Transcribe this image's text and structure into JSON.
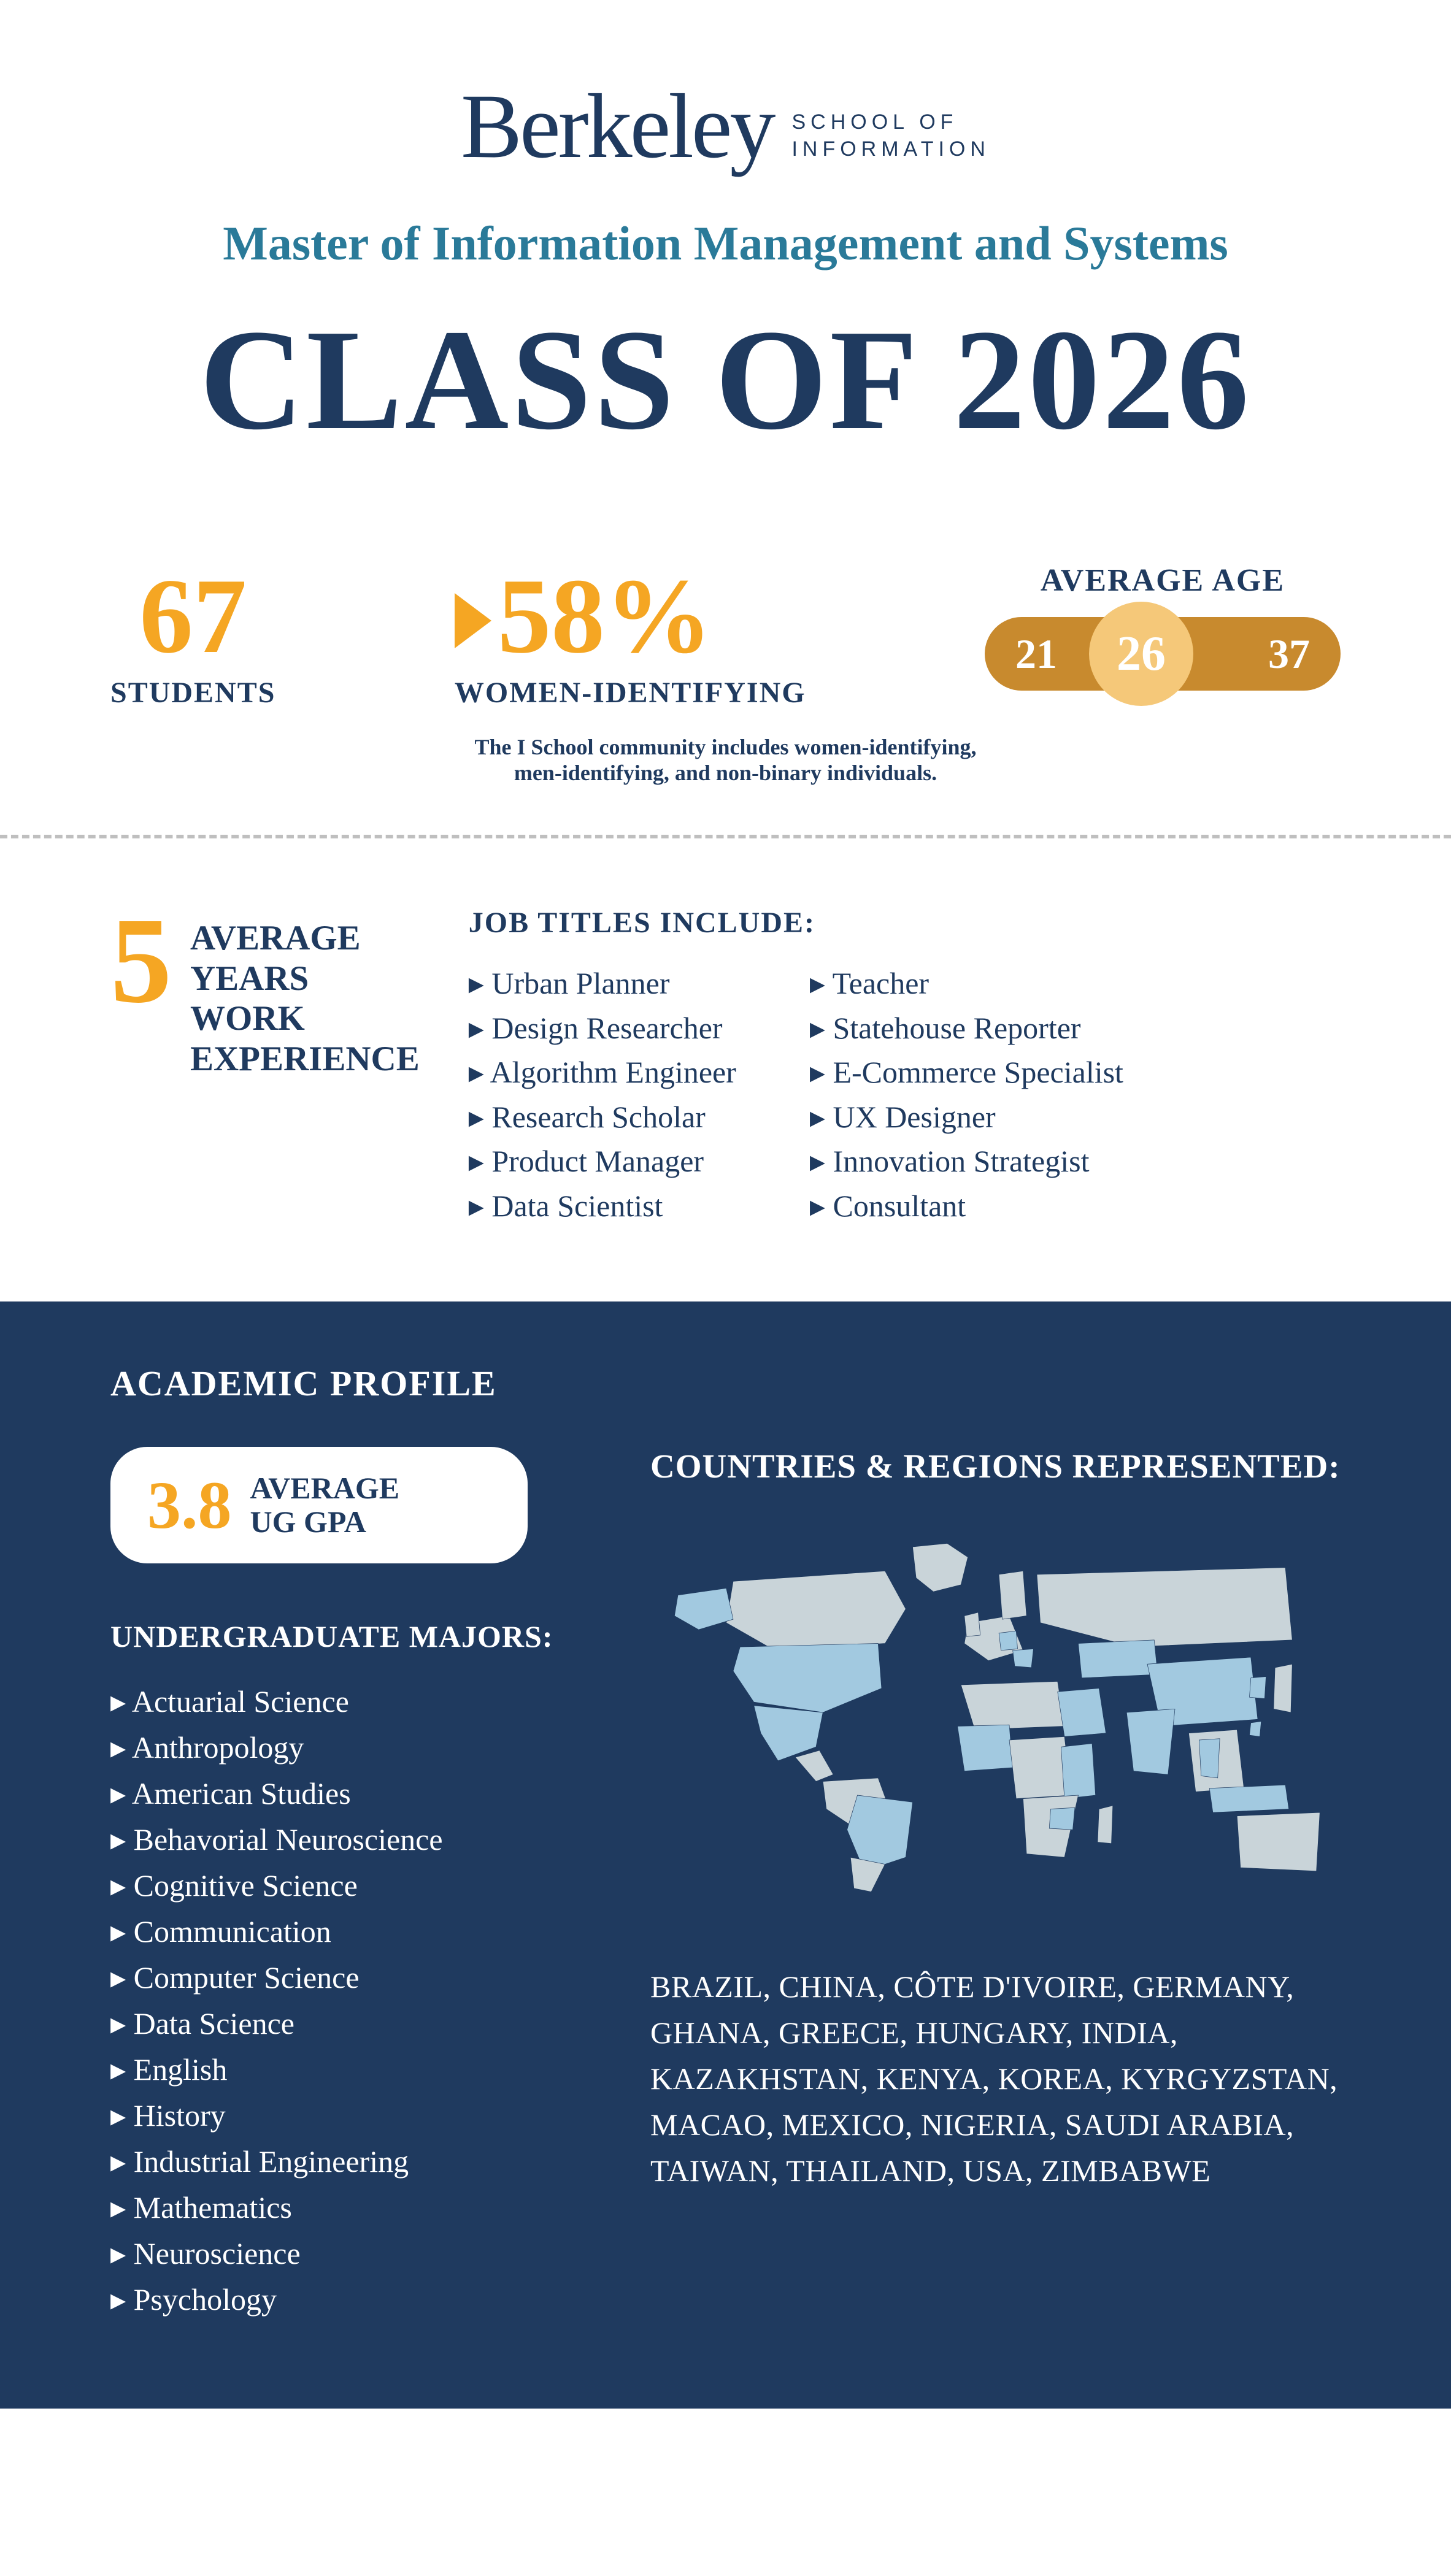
{
  "colors": {
    "navy": "#1f3a5f",
    "teal": "#2a7a99",
    "gold": "#f5a623",
    "gold_dark": "#c88a2e",
    "gold_light": "#f5c879",
    "white": "#ffffff",
    "map_land": "#c9d4d9",
    "map_hl": "#a2c9e0",
    "dash": "#bfbfbf"
  },
  "header": {
    "brand": "Berkeley",
    "brand_sub_line1": "SCHOOL OF",
    "brand_sub_line2": "INFORMATION",
    "program": "Master of Information Management and Systems",
    "class_of": "CLASS OF 2026"
  },
  "stats": {
    "students_num": "67",
    "students_label": "STUDENTS",
    "women_num": "58%",
    "women_label": "WOMEN-IDENTIFYING",
    "age_title": "AVERAGE AGE",
    "age_min": "21",
    "age_avg": "26",
    "age_max": "37",
    "footnote": "The I School community includes women-identifying,\nmen-identifying, and non-binary individuals."
  },
  "work": {
    "years": "5",
    "label_l1": "AVERAGE",
    "label_l2": "YEARS",
    "label_l3": "WORK",
    "label_l4": "EXPERIENCE",
    "jobs_title": "JOB TITLES INCLUDE:",
    "jobs_col1": [
      "Urban Planner",
      "Design Researcher",
      "Algorithm Engineer",
      "Research Scholar",
      "Product Manager",
      "Data Scientist"
    ],
    "jobs_col2": [
      "Teacher",
      "Statehouse Reporter",
      "E-Commerce Specialist",
      "UX Designer",
      "Innovation Strategist",
      "Consultant"
    ]
  },
  "academic": {
    "title": "ACADEMIC PROFILE",
    "gpa_num": "3.8",
    "gpa_l1": "AVERAGE",
    "gpa_l2": "UG GPA",
    "majors_title": "UNDERGRADUATE MAJORS:",
    "majors": [
      "Actuarial Science",
      "Anthropology",
      "American Studies",
      "Behavorial Neuroscience",
      "Cognitive Science",
      "Communication",
      "Computer Science",
      "Data Science",
      "English",
      "History",
      "Industrial Engineering",
      "Mathematics",
      "Neuroscience",
      "Psychology"
    ],
    "countries_title": "COUNTRIES & REGIONS REPRESENTED:",
    "countries_list": "BRAZIL, CHINA, CÔTE D'IVOIRE, GERMANY, GHANA, GREECE, HUNGARY, INDIA, KAZAKHSTAN, KENYA, KOREA, KYRGYZSTAN, MACAO, MEXICO, NIGERIA, SAUDI ARABIA, TAIWAN, THAILAND, USA, ZIMBABWE"
  }
}
